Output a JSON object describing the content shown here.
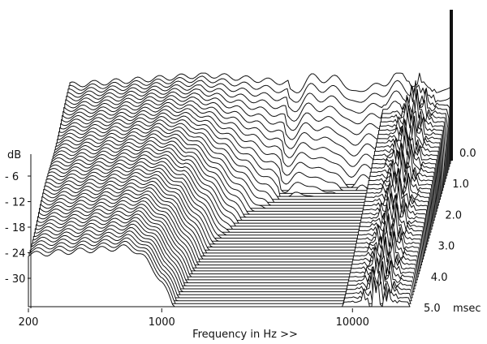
{
  "chart_data": {
    "type": "waterfall",
    "xlabel": "Frequency in Hz >>",
    "x_scale": "log",
    "x_ticks": [
      {
        "value": 200,
        "label": "200"
      },
      {
        "value": 1000,
        "label": "1000"
      },
      {
        "value": 10000,
        "label": "10000"
      }
    ],
    "y_unit_label": "dB",
    "y_ticks": [
      {
        "value": -6,
        "label": "- 6"
      },
      {
        "value": -12,
        "label": "- 12"
      },
      {
        "value": -18,
        "label": "- 18"
      },
      {
        "value": -24,
        "label": "- 24"
      },
      {
        "value": -30,
        "label": "- 30"
      }
    ],
    "time_unit_label": "msec",
    "time_ticks": [
      {
        "value": 0.0,
        "label": "0.0"
      },
      {
        "value": 1.0,
        "label": "1.0"
      },
      {
        "value": 2.0,
        "label": "2.0"
      },
      {
        "value": 3.0,
        "label": "3.0"
      },
      {
        "value": 4.0,
        "label": "4.0"
      },
      {
        "value": 5.0,
        "label": "5.0"
      }
    ],
    "time_range": [
      0,
      5
    ],
    "slice_count": 50,
    "decay_milestones": [
      {
        "freq_hz": 380,
        "decay_end_msec": 4.0
      },
      {
        "freq_hz": 1100,
        "decay_end_msec": 4.0
      },
      {
        "freq_hz": 2700,
        "decay_end_msec": 2.4
      },
      {
        "freq_hz": 4800,
        "decay_end_msec": 1.9
      },
      {
        "freq_hz": 6500,
        "decay_end_msec": 1.4
      },
      {
        "freq_hz": 11000,
        "decay_end_msec": 3.0
      },
      {
        "freq_hz": 13000,
        "decay_end_msec": 3.2
      },
      {
        "freq_hz": 15000,
        "decay_end_msec": 3.3
      }
    ]
  }
}
